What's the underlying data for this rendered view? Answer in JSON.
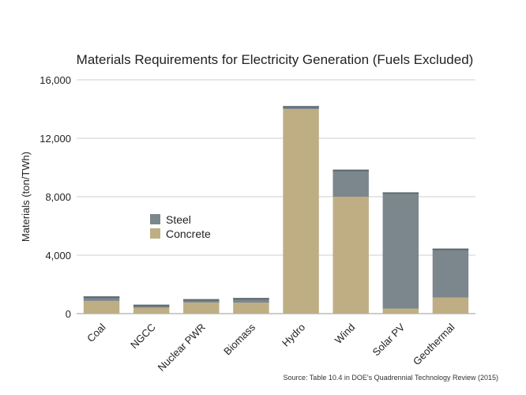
{
  "chart_data": {
    "type": "bar",
    "stacked": true,
    "title": "Materials Requirements for Electricity Generation (Fuels Excluded)",
    "xlabel": "",
    "ylabel": "Materials (ton/TWh)",
    "ylim": [
      0,
      16000
    ],
    "yticks": [
      0,
      4000,
      8000,
      12000,
      16000
    ],
    "ytick_labels": [
      "0",
      "4,000",
      "8,000",
      "12,000",
      "16,000"
    ],
    "grid": true,
    "legend_position": "center-left",
    "categories": [
      "Coal",
      "NGCC",
      "Nuclear PWR",
      "Biomass",
      "Hydro",
      "Wind",
      "Solar PV",
      "Geothermal"
    ],
    "series": [
      {
        "name": "Concrete",
        "color": "#bfae84",
        "values": [
          870,
          400,
          760,
          750,
          14000,
          8000,
          350,
          1100
        ]
      },
      {
        "name": "Steel",
        "color": "#7b878d",
        "values": [
          310,
          210,
          230,
          320,
          200,
          1850,
          7950,
          3350
        ]
      }
    ],
    "legend": [
      {
        "label": "Steel",
        "color": "#7b878d"
      },
      {
        "label": "Concrete",
        "color": "#bfae84"
      }
    ],
    "source_note": "Source: Table 10.4 in DOE's Quadrennial Technology Review (2015)"
  }
}
